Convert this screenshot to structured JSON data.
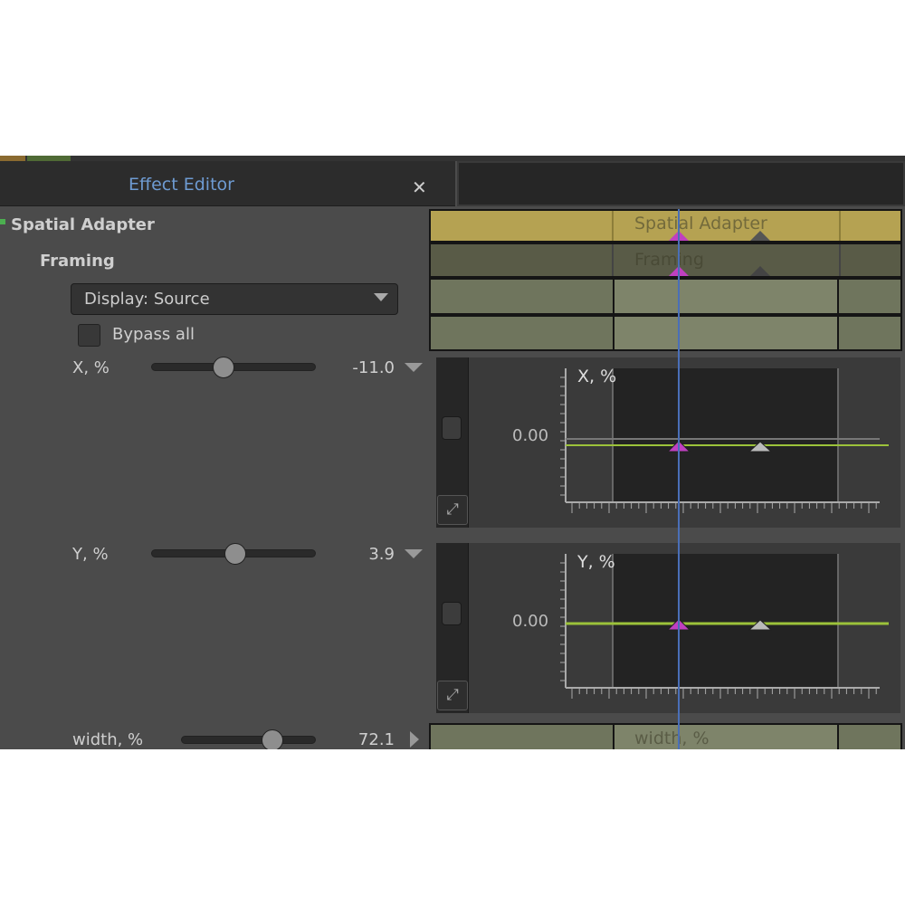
{
  "window": {
    "title": "Effect Editor",
    "close_icon": "close-icon"
  },
  "tree": {
    "effect": "Spatial Adapter",
    "group": "Framing"
  },
  "display_select": {
    "value": "Display: Source"
  },
  "bypass": {
    "label": "Bypass all",
    "checked": false
  },
  "params": [
    {
      "label": "X, %",
      "value": "-11.0",
      "slider_position_pct": 44,
      "expanded": true
    },
    {
      "label": "Y, %",
      "value": "3.9",
      "slider_position_pct": 51,
      "expanded": true
    },
    {
      "label": "width, %",
      "value": "72.1",
      "slider_position_pct": 67,
      "expanded": false
    }
  ],
  "timeline": {
    "rows": [
      "Spatial Adapter",
      "Framing",
      "",
      "",
      "width, %"
    ],
    "colors": {
      "effect": "#b5a252",
      "group": "#595b47",
      "param": "#7b8167",
      "param_active": "#858b70",
      "playhead": "#4a6fb8",
      "keyframe_active": "#c040c0",
      "keyframe": "#8a8a8a",
      "curve": "#9cc23a"
    }
  },
  "graphs": [
    {
      "title": "X, %",
      "zero_label": "0.00"
    },
    {
      "title": "Y, %",
      "zero_label": "0.00"
    }
  ]
}
